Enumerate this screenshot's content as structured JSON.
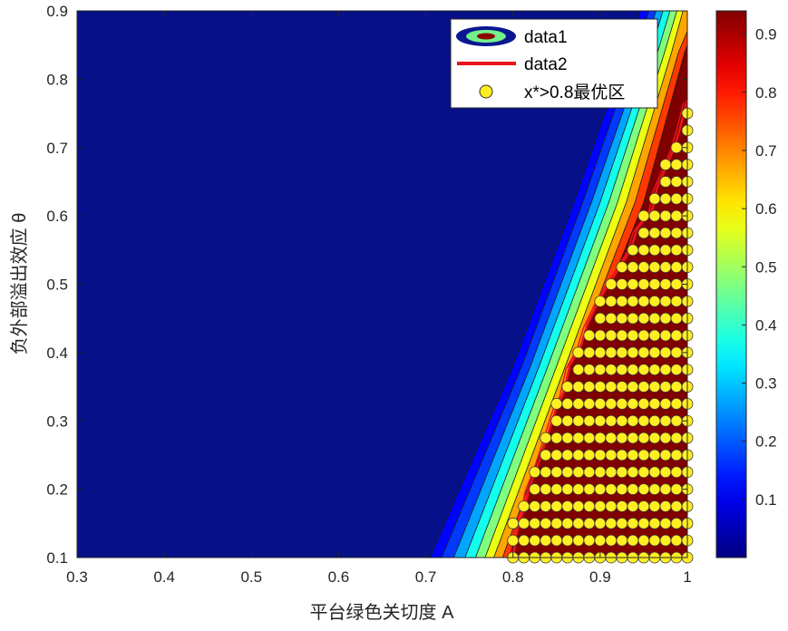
{
  "chart_data": {
    "type": "heatmap",
    "subtype": "filled-contour",
    "xlabel": "平台绿色关切度 A",
    "ylabel": "负外部溢出效应 θ",
    "xlim": [
      0.3,
      1.0
    ],
    "ylim": [
      0.1,
      0.9
    ],
    "x_ticks": [
      0.3,
      0.4,
      0.5,
      0.6,
      0.7,
      0.8,
      0.9,
      1.0
    ],
    "x_tick_labels": [
      "0.3",
      "0.4",
      "0.5",
      "0.6",
      "0.7",
      "0.8",
      "0.9",
      "1"
    ],
    "y_ticks": [
      0.1,
      0.2,
      0.3,
      0.4,
      0.5,
      0.6,
      0.7,
      0.8,
      0.9
    ],
    "y_tick_labels": [
      "0.1",
      "0.2",
      "0.3",
      "0.4",
      "0.5",
      "0.6",
      "0.7",
      "0.8",
      "0.9"
    ],
    "colorbar": {
      "colormap": "jet",
      "range": [
        0.0,
        0.94
      ],
      "ticks": [
        0.1,
        0.2,
        0.3,
        0.4,
        0.5,
        0.6,
        0.7,
        0.8,
        0.9
      ],
      "tick_labels": [
        "0.1",
        "0.2",
        "0.3",
        "0.4",
        "0.5",
        "0.6",
        "0.7",
        "0.8",
        "0.9"
      ]
    },
    "contour_levels": [
      0.05,
      0.1,
      0.15,
      0.2,
      0.25,
      0.3,
      0.35,
      0.4,
      0.45,
      0.5,
      0.55,
      0.6,
      0.65,
      0.7,
      0.75,
      0.8
    ],
    "contour_level_lines": [
      {
        "level": 0.05,
        "points": [
          [
            0.705,
            0.1
          ],
          [
            0.8,
            0.38
          ],
          [
            0.87,
            0.62
          ],
          [
            0.93,
            0.84
          ],
          [
            0.946,
            0.9
          ]
        ]
      },
      {
        "level": 0.1,
        "points": [
          [
            0.718,
            0.1
          ],
          [
            0.81,
            0.38
          ],
          [
            0.88,
            0.62
          ],
          [
            0.94,
            0.84
          ],
          [
            0.956,
            0.9
          ]
        ]
      },
      {
        "level": 0.2,
        "points": [
          [
            0.732,
            0.1
          ],
          [
            0.82,
            0.38
          ],
          [
            0.89,
            0.62
          ],
          [
            0.95,
            0.84
          ],
          [
            0.964,
            0.9
          ]
        ]
      },
      {
        "level": 0.3,
        "points": [
          [
            0.745,
            0.1
          ],
          [
            0.83,
            0.38
          ],
          [
            0.9,
            0.62
          ],
          [
            0.958,
            0.84
          ],
          [
            0.972,
            0.9
          ]
        ]
      },
      {
        "level": 0.4,
        "points": [
          [
            0.757,
            0.1
          ],
          [
            0.84,
            0.38
          ],
          [
            0.91,
            0.62
          ],
          [
            0.966,
            0.84
          ],
          [
            0.98,
            0.9
          ]
        ]
      },
      {
        "level": 0.5,
        "points": [
          [
            0.768,
            0.1
          ],
          [
            0.85,
            0.38
          ],
          [
            0.92,
            0.62
          ],
          [
            0.974,
            0.84
          ],
          [
            0.988,
            0.9
          ]
        ]
      },
      {
        "level": 0.6,
        "points": [
          [
            0.778,
            0.1
          ],
          [
            0.86,
            0.38
          ],
          [
            0.93,
            0.62
          ],
          [
            0.982,
            0.84
          ],
          [
            0.995,
            0.9
          ]
        ]
      },
      {
        "level": 0.7,
        "points": [
          [
            0.788,
            0.1
          ],
          [
            0.868,
            0.38
          ],
          [
            0.94,
            0.62
          ],
          [
            0.99,
            0.84
          ],
          [
            1.0,
            0.87
          ]
        ]
      },
      {
        "level": 0.8,
        "points": [
          [
            0.795,
            0.1
          ],
          [
            0.875,
            0.38
          ],
          [
            0.95,
            0.62
          ],
          [
            0.997,
            0.84
          ],
          [
            1.0,
            0.85
          ]
        ]
      }
    ],
    "series": [
      {
        "name": "data1",
        "kind": "filled-contour"
      },
      {
        "name": "data2",
        "kind": "line",
        "color": "#e8141c",
        "points": [
          [
            0.8,
            0.1
          ],
          [
            0.805,
            0.14
          ],
          [
            0.815,
            0.18
          ],
          [
            0.818,
            0.2
          ],
          [
            0.83,
            0.24
          ],
          [
            0.84,
            0.28
          ],
          [
            0.85,
            0.32
          ],
          [
            0.858,
            0.34
          ],
          [
            0.865,
            0.38
          ],
          [
            0.878,
            0.41
          ],
          [
            0.885,
            0.44
          ],
          [
            0.9,
            0.48
          ],
          [
            0.91,
            0.5
          ],
          [
            0.925,
            0.53
          ],
          [
            0.935,
            0.55
          ],
          [
            0.942,
            0.58
          ],
          [
            0.96,
            0.61
          ],
          [
            0.965,
            0.64
          ],
          [
            0.975,
            0.67
          ],
          [
            0.985,
            0.7
          ],
          [
            0.992,
            0.73
          ],
          [
            1.0,
            0.77
          ]
        ]
      },
      {
        "name": "x*>0.8最优区",
        "kind": "scatter",
        "marker_color": "#ffee22",
        "x_grid": [
          0.8,
          0.8125,
          0.825,
          0.8375,
          0.85,
          0.8625,
          0.875,
          0.8875,
          0.9,
          0.9125,
          0.925,
          0.9375,
          0.95,
          0.9625,
          0.975,
          0.9875,
          1.0
        ],
        "y_max_per_column": [
          0.16,
          0.19,
          0.24,
          0.29,
          0.33,
          0.37,
          0.41,
          0.44,
          0.48,
          0.51,
          0.54,
          0.57,
          0.61,
          0.64,
          0.68,
          0.72,
          0.76
        ],
        "y_step": 0.025
      }
    ],
    "legend": {
      "placement": "top-right",
      "entries": [
        "data1",
        "data2",
        "x*>0.8最优区"
      ]
    }
  }
}
